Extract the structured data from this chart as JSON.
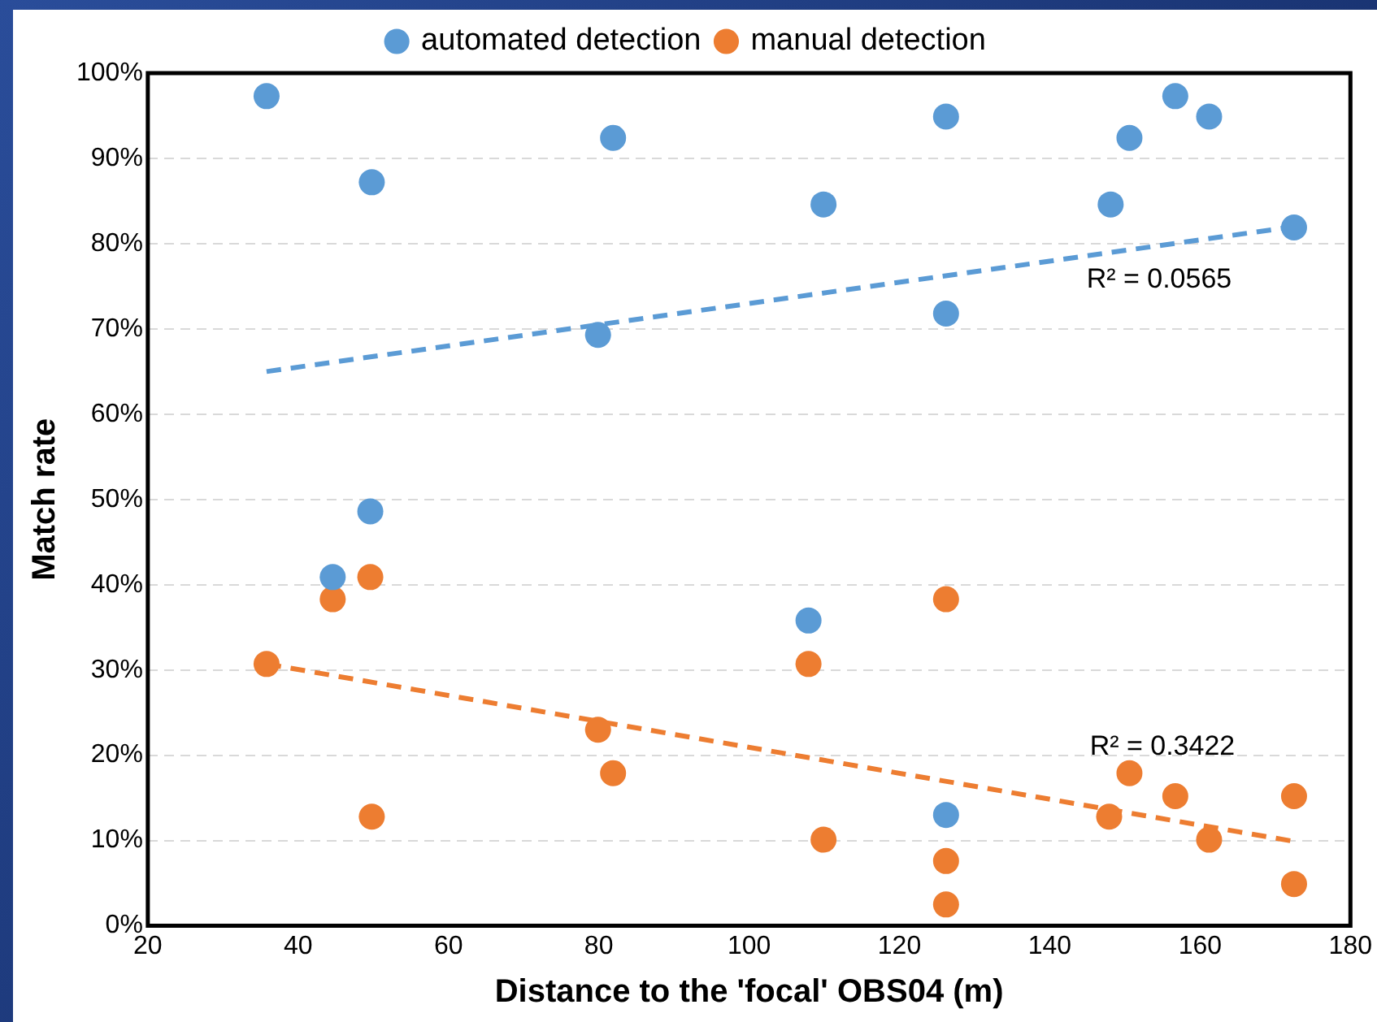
{
  "chart_data": {
    "type": "scatter",
    "xlabel": "Distance to the 'focal' OBS04 (m)",
    "ylabel": "Match rate",
    "series": [
      {
        "name": "automated detection",
        "color": "#5b9bd5",
        "x": [
          35.8,
          49.8,
          81.9,
          79.9,
          49.6,
          44.6,
          107.9,
          109.9,
          126.2,
          126.2,
          126.2,
          148.1,
          150.6,
          156.7,
          161.2,
          172.5
        ],
        "values": [
          97.3,
          87.2,
          92.4,
          69.3,
          48.6,
          40.9,
          35.8,
          84.6,
          94.9,
          71.8,
          13.0,
          84.6,
          92.4,
          97.3,
          94.9,
          81.9
        ]
      },
      {
        "name": "manual detection",
        "color": "#ed7d31",
        "x": [
          35.8,
          44.6,
          49.6,
          49.8,
          79.9,
          81.9,
          107.9,
          109.9,
          126.2,
          126.2,
          126.2,
          147.9,
          150.6,
          156.7,
          161.2,
          172.5,
          172.5
        ],
        "values": [
          30.7,
          38.3,
          40.9,
          12.8,
          23.0,
          17.9,
          30.7,
          10.1,
          38.3,
          7.6,
          2.5,
          12.8,
          17.9,
          15.2,
          10.1,
          15.2,
          4.9
        ]
      },
      {
        "type": "line",
        "color": "#5b9bd5",
        "line_style": "dashed",
        "marker": "none",
        "x": [
          35.8,
          172.5
        ],
        "values": [
          65.0,
          82.0
        ]
      },
      {
        "type": "line",
        "color": "#ed7d31",
        "line_style": "dashed",
        "marker": "none",
        "x": [
          35.8,
          172.5
        ],
        "values": [
          30.7,
          9.9
        ]
      }
    ],
    "annotations": [
      "R² = 0.0565",
      "R² = 0.3422"
    ],
    "xlim": [
      20,
      180
    ],
    "xticks": [
      20,
      40,
      60,
      80,
      100,
      120,
      140,
      160,
      180
    ],
    "ylim": [
      0,
      100
    ],
    "yticks": [
      {
        "value": 0,
        "label": "0%"
      },
      {
        "value": 10,
        "label": "10%"
      },
      {
        "value": 20,
        "label": "20%"
      },
      {
        "value": 30,
        "label": "30%"
      },
      {
        "value": 40,
        "label": "40%"
      },
      {
        "value": 50,
        "label": "50%"
      },
      {
        "value": 60,
        "label": "60%"
      },
      {
        "value": 70,
        "label": "70%"
      },
      {
        "value": 80,
        "label": "80%"
      },
      {
        "value": 90,
        "label": "90%"
      },
      {
        "value": 100,
        "label": "100%"
      }
    ],
    "grid": "y",
    "legend": "top",
    "marker": "circle"
  }
}
